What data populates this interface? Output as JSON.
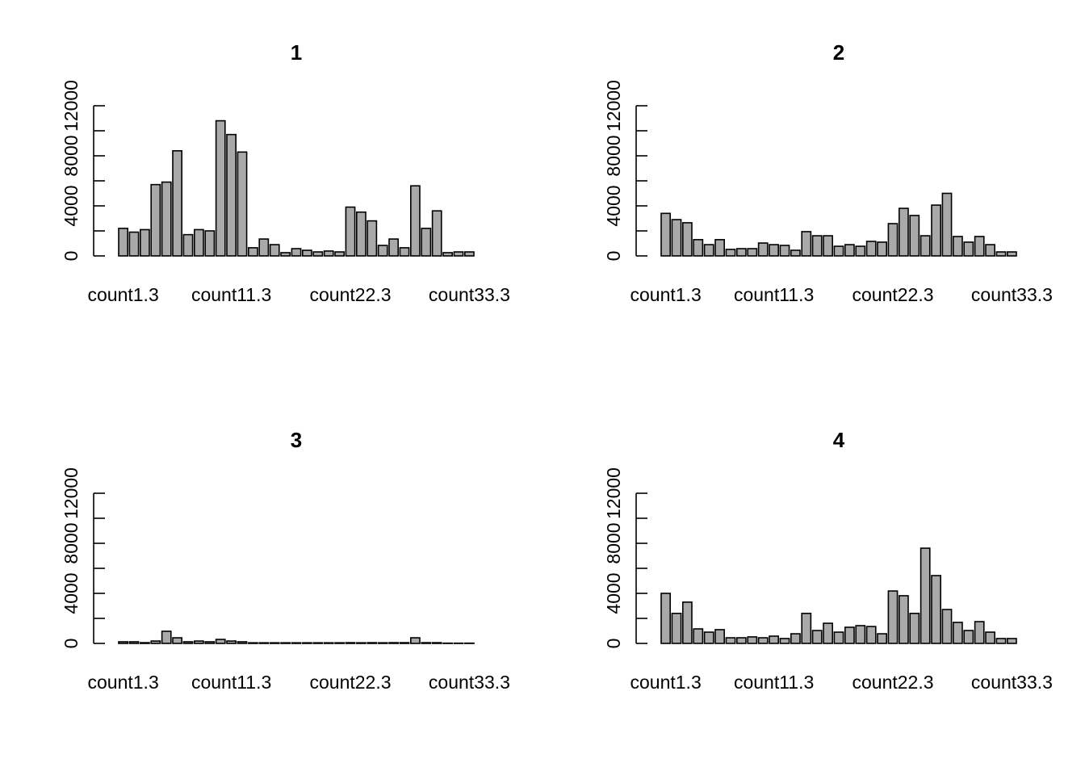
{
  "chart_data": [
    {
      "type": "bar",
      "title": "1",
      "categories": [
        "count1.3",
        null,
        null,
        null,
        null,
        null,
        null,
        null,
        null,
        null,
        "count11.3",
        null,
        null,
        null,
        null,
        null,
        null,
        null,
        null,
        null,
        null,
        "count22.3",
        null,
        null,
        null,
        null,
        null,
        null,
        null,
        null,
        null,
        null,
        "count33.3"
      ],
      "values": [
        2200,
        1900,
        2100,
        5700,
        5900,
        8400,
        1700,
        2100,
        2000,
        10800,
        9700,
        8300,
        650,
        1350,
        900,
        260,
        580,
        450,
        320,
        390,
        320,
        3900,
        3500,
        2800,
        840,
        1350,
        650,
        5600,
        2200,
        3600,
        260,
        320,
        320
      ],
      "color": "#a9a9a9",
      "ylim": [
        0,
        12000
      ],
      "yticks": [
        0,
        2000,
        4000,
        6000,
        8000,
        10000,
        12000
      ]
    },
    {
      "type": "bar",
      "title": "2",
      "categories": [
        "count1.3",
        null,
        null,
        null,
        null,
        null,
        null,
        null,
        null,
        null,
        "count11.3",
        null,
        null,
        null,
        null,
        null,
        null,
        null,
        null,
        null,
        null,
        "count22.3",
        null,
        null,
        null,
        null,
        null,
        null,
        null,
        null,
        null,
        null,
        "count33.3"
      ],
      "values": [
        3400,
        2900,
        2650,
        1300,
        900,
        1300,
        520,
        580,
        580,
        1030,
        900,
        840,
        450,
        1940,
        1610,
        1610,
        770,
        900,
        770,
        1160,
        1100,
        2580,
        3800,
        3230,
        1610,
        4060,
        5000,
        1550,
        1100,
        1550,
        900,
        320,
        320
      ],
      "color": "#a9a9a9",
      "ylim": [
        0,
        12000
      ],
      "yticks": [
        0,
        2000,
        4000,
        6000,
        8000,
        10000,
        12000
      ]
    },
    {
      "type": "bar",
      "title": "3",
      "categories": [
        "count1.3",
        null,
        null,
        null,
        null,
        null,
        null,
        null,
        null,
        null,
        "count11.3",
        null,
        null,
        null,
        null,
        null,
        null,
        null,
        null,
        null,
        null,
        "count22.3",
        null,
        null,
        null,
        null,
        null,
        null,
        null,
        null,
        null,
        null,
        "count33.3"
      ],
      "values": [
        130,
        130,
        60,
        190,
        970,
        450,
        130,
        190,
        130,
        320,
        190,
        130,
        50,
        50,
        50,
        50,
        50,
        50,
        50,
        50,
        50,
        60,
        50,
        60,
        50,
        60,
        60,
        450,
        60,
        60,
        20,
        20,
        20
      ],
      "color": "#a9a9a9",
      "ylim": [
        0,
        12000
      ],
      "yticks": [
        0,
        2000,
        4000,
        6000,
        8000,
        10000,
        12000
      ]
    },
    {
      "type": "bar",
      "title": "4",
      "categories": [
        "count1.3",
        null,
        null,
        null,
        null,
        null,
        null,
        null,
        null,
        null,
        "count11.3",
        null,
        null,
        null,
        null,
        null,
        null,
        null,
        null,
        null,
        null,
        "count22.3",
        null,
        null,
        null,
        null,
        null,
        null,
        null,
        null,
        null,
        null,
        "count33.3"
      ],
      "values": [
        4000,
        2400,
        3300,
        1160,
        900,
        1100,
        450,
        450,
        520,
        450,
        580,
        390,
        770,
        2400,
        1030,
        1610,
        900,
        1290,
        1420,
        1350,
        770,
        4190,
        3810,
        2400,
        7610,
        5420,
        2710,
        1680,
        1030,
        1740,
        900,
        390,
        390
      ],
      "color": "#a9a9a9",
      "ylim": [
        0,
        12000
      ],
      "yticks": [
        0,
        2000,
        4000,
        6000,
        8000,
        10000,
        12000
      ]
    }
  ]
}
